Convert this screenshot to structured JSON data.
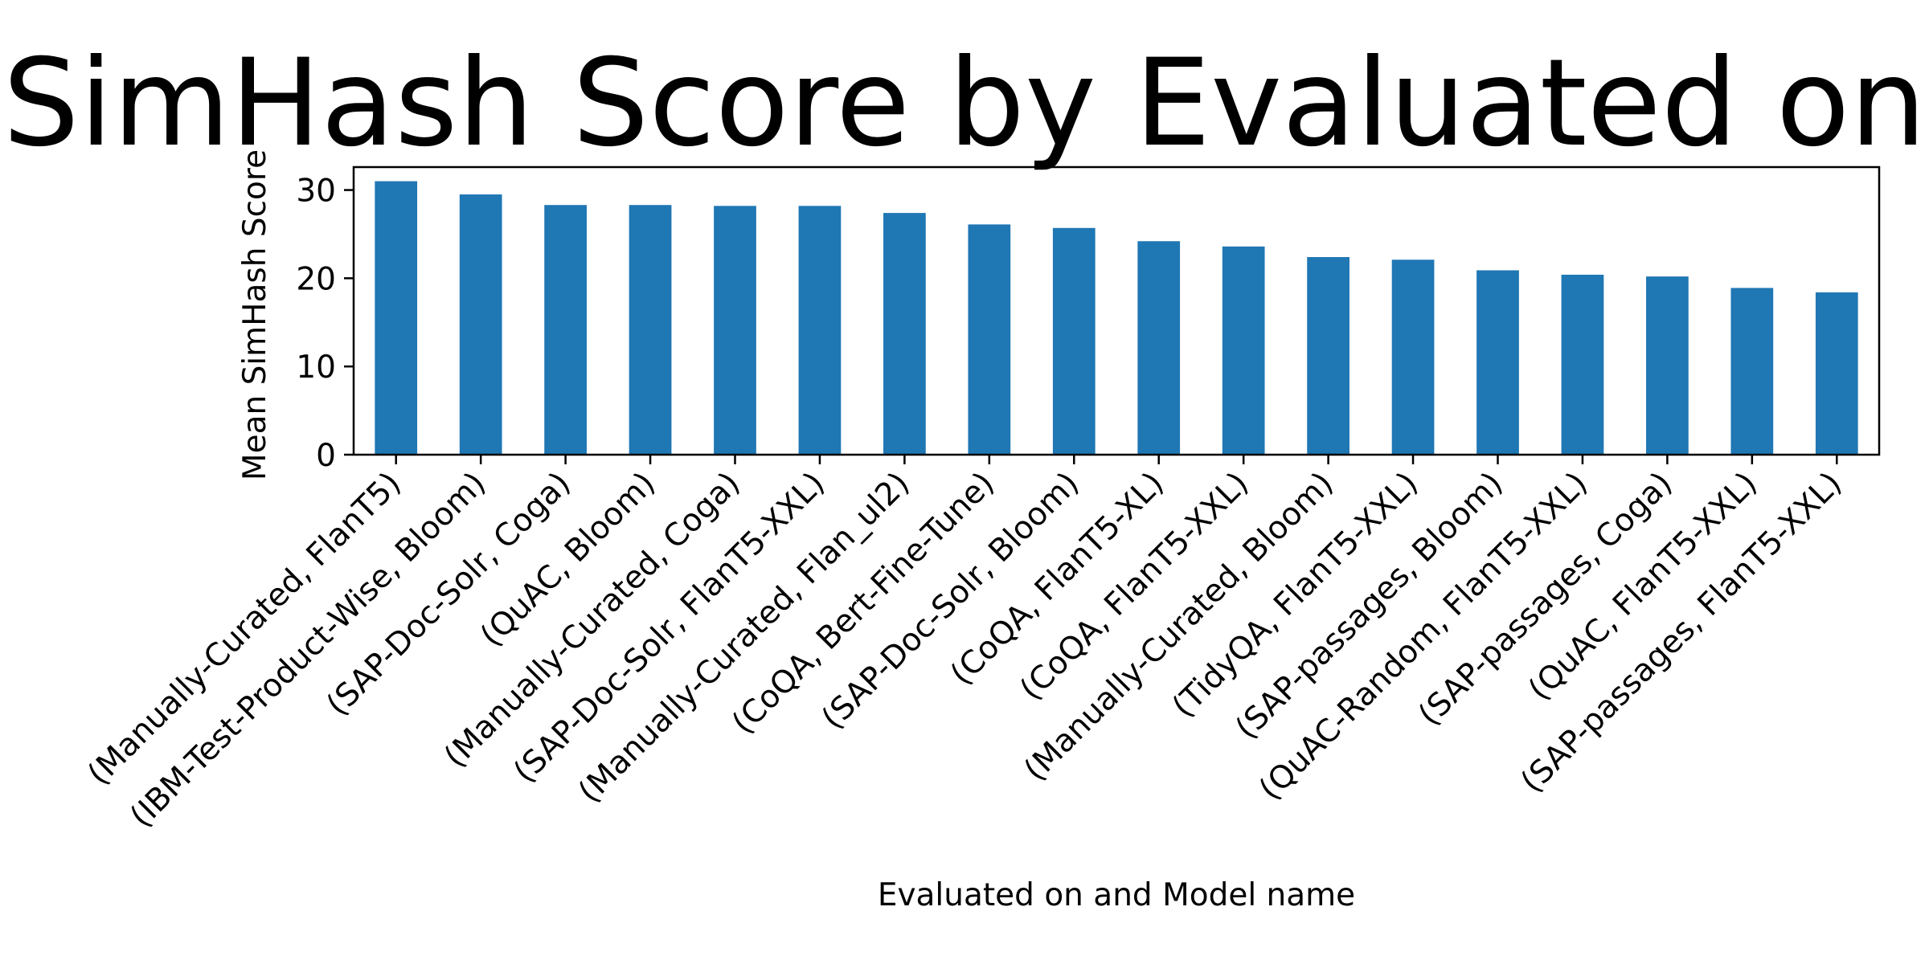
{
  "chart_data": {
    "type": "bar",
    "title": "SimHash Score by Evaluated on",
    "xlabel": "Evaluated on and Model name",
    "ylabel": "Mean SimHash Score",
    "ylim": [
      0,
      32.6
    ],
    "yticks": [
      0,
      10,
      20,
      30
    ],
    "grid": false,
    "legend": "none",
    "bar_color": "#1f77b4",
    "categories": [
      "(Manually-Curated, FlanT5)",
      "(IBM-Test-Product-Wise, Bloom)",
      "(SAP-Doc-Solr, Coga)",
      "(QuAC, Bloom)",
      "(Manually-Curated, Coga)",
      "(SAP-Doc-Solr, FlanT5-XXL)",
      "(Manually-Curated, Flan_ul2)",
      "(CoQA, Bert-Fine-Tune)",
      "(SAP-Doc-Solr, Bloom)",
      "(CoQA, FlanT5-XL)",
      "(CoQA, FlanT5-XXL)",
      "(Manually-Curated, Bloom)",
      "(TidyQA, FlanT5-XXL)",
      "(SAP-passages, Bloom)",
      "(QuAC-Random, FlanT5-XXL)",
      "(SAP-passages, Coga)",
      "(QuAC, FlanT5-XXL)",
      "(SAP-passages, FlanT5-XXL)"
    ],
    "values": [
      31.0,
      29.5,
      28.3,
      28.3,
      28.2,
      28.2,
      27.4,
      26.1,
      25.7,
      24.2,
      23.6,
      22.4,
      22.1,
      20.9,
      20.4,
      20.2,
      18.9,
      18.4
    ]
  }
}
